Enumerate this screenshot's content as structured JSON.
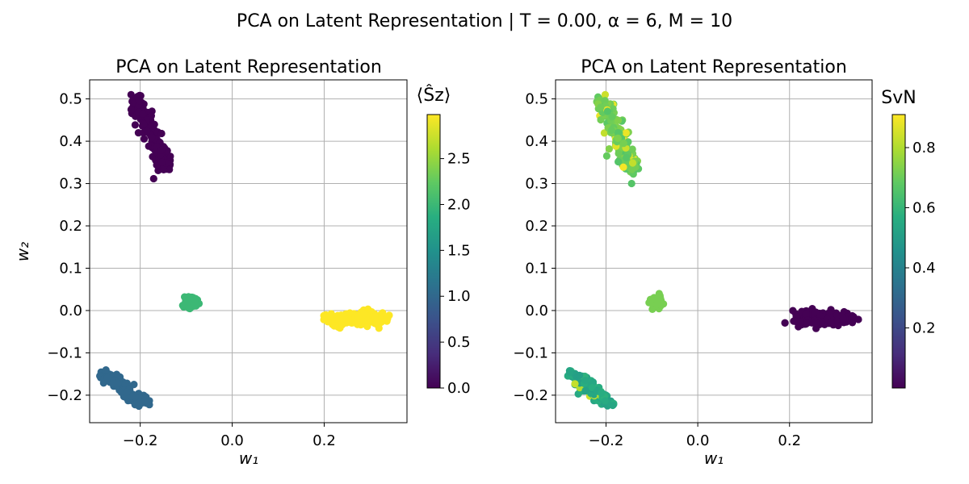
{
  "figure": {
    "suptitle": "PCA on Latent Representation | T = 0.00, α = 6, M = 10"
  },
  "chart_data": [
    {
      "type": "scatter",
      "title": "PCA on Latent Representation",
      "xlabel": "w₁",
      "ylabel": "w₂",
      "xlim": [
        -0.31,
        0.38
      ],
      "ylim": [
        -0.265,
        0.545
      ],
      "xticks": [
        -0.2,
        0.0,
        0.2
      ],
      "xtick_labels": [
        "−0.2",
        "0.0",
        "0.2"
      ],
      "yticks": [
        -0.2,
        -0.1,
        0.0,
        0.1,
        0.2,
        0.3,
        0.4,
        0.5
      ],
      "ytick_labels": [
        "−0.2",
        "−0.1",
        "0.0",
        "0.1",
        "0.2",
        "0.3",
        "0.4",
        "0.5"
      ],
      "grid": true,
      "colormap": "viridis",
      "colorbar": {
        "label": "⟨Ŝz⟩",
        "range": [
          0.0,
          2.98
        ],
        "ticks": [
          0.0,
          0.5,
          1.0,
          1.5,
          2.0,
          2.5
        ],
        "tick_labels": [
          "0.0",
          "0.5",
          "1.0",
          "1.5",
          "2.0",
          "2.5"
        ]
      },
      "clusters": [
        {
          "center": [
            -0.19,
            0.4
          ],
          "spread": [
            0.02,
            0.045
          ],
          "orientation": "elongated diagonal",
          "extent_x": [
            -0.22,
            -0.12
          ],
          "extent_y": [
            0.3,
            0.51
          ],
          "value": 0.0
        },
        {
          "center": [
            -0.25,
            -0.19
          ],
          "spread": [
            0.02,
            0.018
          ],
          "orientation": "elongated diagonal",
          "extent_x": [
            -0.29,
            -0.18
          ],
          "extent_y": [
            -0.23,
            -0.14
          ],
          "value": 1.0
        },
        {
          "center": [
            -0.09,
            0.02
          ],
          "spread": [
            0.008,
            0.008
          ],
          "orientation": "round",
          "extent_x": [
            -0.11,
            -0.07
          ],
          "extent_y": [
            0.0,
            0.04
          ],
          "value": 2.0
        },
        {
          "center": [
            0.27,
            -0.02
          ],
          "spread": [
            0.035,
            0.009
          ],
          "orientation": "horizontal",
          "extent_x": [
            0.19,
            0.35
          ],
          "extent_y": [
            -0.05,
            0.01
          ],
          "value": 3.0
        }
      ]
    },
    {
      "type": "scatter",
      "title": "PCA on Latent Representation",
      "xlabel": "w₁",
      "ylabel": "",
      "xlim": [
        -0.31,
        0.38
      ],
      "ylim": [
        -0.265,
        0.545
      ],
      "xticks": [
        -0.2,
        0.0,
        0.2
      ],
      "xtick_labels": [
        "−0.2",
        "0.0",
        "0.2"
      ],
      "yticks": [
        -0.2,
        -0.1,
        0.0,
        0.1,
        0.2,
        0.3,
        0.4,
        0.5
      ],
      "ytick_labels": [
        "−0.2",
        "−0.1",
        "0.0",
        "0.1",
        "0.2",
        "0.3",
        "0.4",
        "0.5"
      ],
      "grid": true,
      "colormap": "viridis",
      "colorbar": {
        "label": "SvN",
        "range": [
          0.0,
          0.91
        ],
        "ticks": [
          0.2,
          0.4,
          0.6,
          0.8
        ],
        "tick_labels": [
          "0.2",
          "0.4",
          "0.6",
          "0.8"
        ]
      },
      "clusters": [
        {
          "center": [
            -0.19,
            0.4
          ],
          "spread": [
            0.02,
            0.045
          ],
          "orientation": "elongated diagonal",
          "extent_x": [
            -0.22,
            -0.12
          ],
          "extent_y": [
            0.3,
            0.51
          ],
          "value": 0.7,
          "value_range": [
            0.62,
            0.91
          ]
        },
        {
          "center": [
            -0.25,
            -0.19
          ],
          "spread": [
            0.02,
            0.018
          ],
          "orientation": "elongated diagonal",
          "extent_x": [
            -0.29,
            -0.18
          ],
          "extent_y": [
            -0.23,
            -0.14
          ],
          "value": 0.55,
          "value_range": [
            0.4,
            0.91
          ]
        },
        {
          "center": [
            -0.09,
            0.02
          ],
          "spread": [
            0.008,
            0.008
          ],
          "orientation": "round",
          "extent_x": [
            -0.11,
            -0.07
          ],
          "extent_y": [
            0.0,
            0.04
          ],
          "value": 0.72
        },
        {
          "center": [
            0.27,
            -0.02
          ],
          "spread": [
            0.035,
            0.009
          ],
          "orientation": "horizontal",
          "extent_x": [
            0.19,
            0.35
          ],
          "extent_y": [
            -0.05,
            0.01
          ],
          "value": 0.0
        }
      ]
    }
  ]
}
